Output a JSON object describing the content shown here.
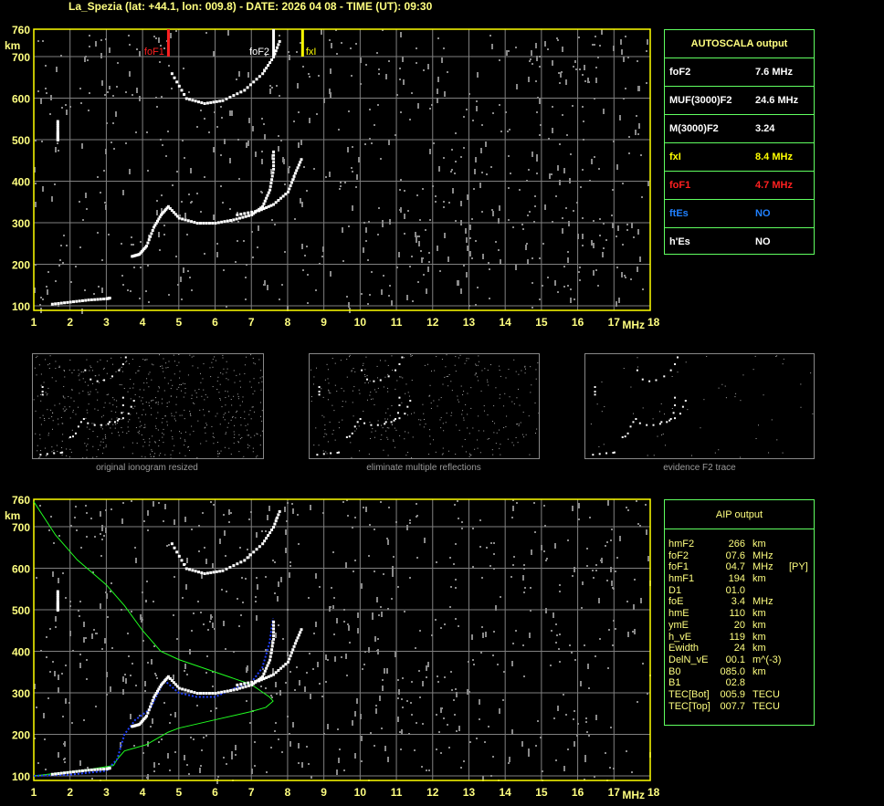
{
  "title": "La_Spezia (lat: +44.1, lon: 009.8) - DATE: 2026 04 08 - TIME (UT): 09:30",
  "colors": {
    "frame": "#ffff00",
    "grid": "#808080",
    "table_border": "#60ff60",
    "text": "#ffff80",
    "foF1": "#ff2020",
    "fxI": "#ffff00",
    "ftEs": "#2080ff",
    "trace": "#ffffff",
    "profile": "#20ff20",
    "fitted": "#2040ff"
  },
  "axes": {
    "y_unit": "km",
    "x_unit": "MHz",
    "y_ticks": [
      "100",
      "200",
      "300",
      "400",
      "500",
      "600",
      "700",
      "760"
    ],
    "x_ticks": [
      "1",
      "2",
      "3",
      "4",
      "5",
      "6",
      "7",
      "8",
      "9",
      "10",
      "11",
      "12",
      "13",
      "14",
      "15",
      "16",
      "17",
      "18"
    ],
    "xlim": [
      1,
      18
    ],
    "ylim": [
      100,
      760
    ]
  },
  "markers": [
    {
      "label": "foF1",
      "freq": 4.7,
      "color": "#ff2020"
    },
    {
      "label": "foF2",
      "freq": 7.6,
      "color": "#ffffff"
    },
    {
      "label": "fxI",
      "freq": 8.4,
      "color": "#ffff00"
    }
  ],
  "autoscala": {
    "header": "AUTOSCALA output",
    "rows": [
      {
        "label": "foF2",
        "value": "7.6 MHz",
        "color": "#ffffff"
      },
      {
        "label": "MUF(3000)F2",
        "value": "24.6 MHz",
        "color": "#ffffff"
      },
      {
        "label": "M(3000)F2",
        "value": "3.24",
        "color": "#ffffff"
      },
      {
        "label": "fxI",
        "value": "8.4 MHz",
        "color": "#ffff00"
      },
      {
        "label": "foF1",
        "value": "4.7 MHz",
        "color": "#ff2020"
      },
      {
        "label": "ftEs",
        "value": "NO",
        "color": "#2080ff"
      },
      {
        "label": "h'Es",
        "value": "NO",
        "color": "#ffffff"
      }
    ]
  },
  "thumbnails": [
    {
      "caption": "original ionogram resized"
    },
    {
      "caption": "eliminate multiple reflections"
    },
    {
      "caption": "evidence F2 trace"
    }
  ],
  "aip": {
    "header": "AIP output",
    "rows": [
      [
        "hmF2",
        "266",
        "km",
        ""
      ],
      [
        "foF2",
        "07.6",
        "MHz",
        ""
      ],
      [
        "foF1",
        "04.7",
        "MHz",
        "[PY]"
      ],
      [
        "hmF1",
        "194",
        "km",
        ""
      ],
      [
        "D1",
        "01.0",
        "",
        ""
      ],
      [
        "foE",
        "3.4",
        "MHz",
        ""
      ],
      [
        "hmE",
        "110",
        "km",
        ""
      ],
      [
        "ymE",
        "20",
        "km",
        ""
      ],
      [
        "h_vE",
        "119",
        "km",
        ""
      ],
      [
        "Ewidth",
        "24",
        "km",
        ""
      ],
      [
        "DelN_vE",
        "00.1",
        "m^(-3)",
        ""
      ],
      [
        "B0",
        "085.0",
        "km",
        ""
      ],
      [
        "B1",
        "02.8",
        "",
        ""
      ],
      [
        "TEC[Bot]",
        "005.9",
        "TECU",
        ""
      ],
      [
        "TEC[Top]",
        "007.7",
        "TECU",
        ""
      ]
    ]
  },
  "chart_data": {
    "type": "scatter",
    "xlabel": "MHz",
    "ylabel": "km",
    "xlim": [
      1,
      18
    ],
    "ylim": [
      100,
      760
    ],
    "traces": [
      {
        "points": [
          [
            1.5,
            105
          ],
          [
            2,
            110
          ],
          [
            2.5,
            115
          ],
          [
            3,
            118
          ],
          [
            3.1,
            120
          ]
        ]
      },
      {
        "points": [
          [
            1.65,
            500
          ],
          [
            1.65,
            520
          ],
          [
            1.65,
            550
          ]
        ]
      },
      {
        "points": [
          [
            3.7,
            220
          ],
          [
            3.9,
            225
          ],
          [
            4.1,
            245
          ],
          [
            4.3,
            290
          ],
          [
            4.5,
            320
          ],
          [
            4.7,
            340
          ],
          [
            5,
            312
          ],
          [
            5.5,
            300
          ],
          [
            6,
            300
          ],
          [
            6.5,
            308
          ],
          [
            7,
            320
          ],
          [
            7.3,
            340
          ],
          [
            7.5,
            380
          ],
          [
            7.6,
            430
          ],
          [
            7.6,
            480
          ]
        ]
      },
      {
        "points": [
          [
            6.6,
            320
          ],
          [
            7.2,
            330
          ],
          [
            7.6,
            345
          ],
          [
            8,
            375
          ],
          [
            8.2,
            420
          ],
          [
            8.4,
            460
          ]
        ]
      },
      {
        "points": [
          [
            4.8,
            660
          ],
          [
            5.2,
            600
          ],
          [
            5.7,
            588
          ],
          [
            6.2,
            595
          ],
          [
            6.8,
            620
          ],
          [
            7.3,
            660
          ],
          [
            7.6,
            700
          ],
          [
            7.8,
            745
          ]
        ]
      }
    ],
    "profile": [
      [
        1,
        760
      ],
      [
        1.6,
        680
      ],
      [
        2.2,
        620
      ],
      [
        3,
        560
      ],
      [
        3.5,
        510
      ],
      [
        4,
        450
      ],
      [
        4.5,
        400
      ],
      [
        5,
        380
      ],
      [
        6,
        350
      ],
      [
        7,
        320
      ],
      [
        7.5,
        290
      ],
      [
        7.6,
        280
      ],
      [
        7.4,
        265
      ],
      [
        7,
        255
      ],
      [
        6,
        235
      ],
      [
        5,
        215
      ],
      [
        4.7,
        205
      ],
      [
        4.5,
        195
      ],
      [
        4.1,
        175
      ],
      [
        3.5,
        160
      ],
      [
        3.3,
        140
      ],
      [
        3.2,
        125
      ],
      [
        2.5,
        115
      ],
      [
        1.8,
        108
      ],
      [
        1,
        100
      ]
    ],
    "fitted": [
      [
        1,
        100
      ],
      [
        2,
        103
      ],
      [
        3,
        112
      ],
      [
        3.3,
        140
      ],
      [
        3.5,
        200
      ],
      [
        3.8,
        235
      ],
      [
        4.2,
        260
      ],
      [
        4.6,
        330
      ],
      [
        5,
        300
      ],
      [
        5.5,
        290
      ],
      [
        6,
        290
      ],
      [
        6.5,
        310
      ],
      [
        7,
        325
      ],
      [
        7.3,
        360
      ],
      [
        7.5,
        420
      ],
      [
        7.6,
        480
      ]
    ]
  }
}
